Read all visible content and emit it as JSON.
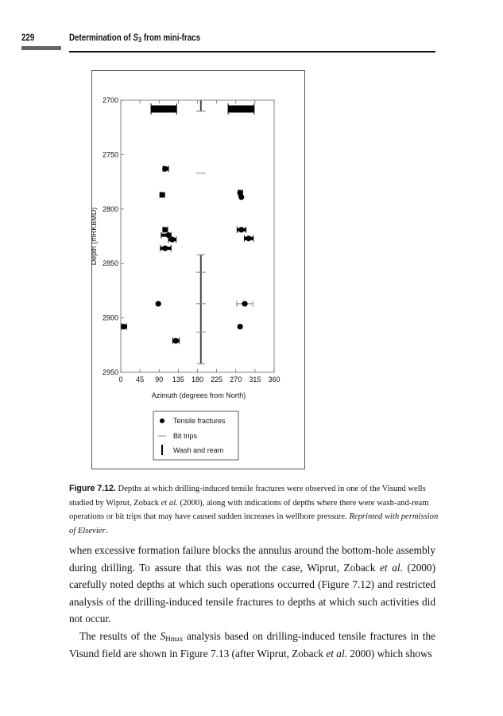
{
  "header": {
    "page_number": "229",
    "running_title_pre": "Determination of ",
    "running_title_var": "S",
    "running_title_sub": "3",
    "running_title_post": " from mini-fracs"
  },
  "chart_data": {
    "type": "scatter",
    "xlabel": "Azimuth (degrees from North)",
    "ylabel": "Depth (mRKBMD)",
    "xlim": [
      0,
      360
    ],
    "ylim": [
      2950,
      2700
    ],
    "y_inverted": true,
    "xticks": [
      0,
      45,
      90,
      135,
      180,
      225,
      270,
      315,
      360
    ],
    "yticks": [
      2700,
      2750,
      2800,
      2850,
      2900,
      2950
    ],
    "legend_position": "below",
    "legend": [
      "Tensile fractures",
      "Bit trips",
      "Wash and ream"
    ],
    "tensile_fractures": [
      {
        "azimuth": 99,
        "depth": 2708,
        "az_min": 71,
        "az_max": 131
      },
      {
        "azimuth": 283,
        "depth": 2708,
        "az_min": 252,
        "az_max": 313
      },
      {
        "azimuth": 104,
        "depth": 2763,
        "az_min": 99,
        "az_max": 112
      },
      {
        "azimuth": 97,
        "depth": 2787,
        "az_min": 92,
        "az_max": 103
      },
      {
        "azimuth": 280,
        "depth": 2785,
        "az_min": 276,
        "az_max": 286
      },
      {
        "azimuth": 283,
        "depth": 2789
      },
      {
        "azimuth": 104,
        "depth": 2819,
        "az_min": 99,
        "az_max": 110
      },
      {
        "azimuth": 112,
        "depth": 2824,
        "az_min": 95,
        "az_max": 118
      },
      {
        "azimuth": 121,
        "depth": 2828,
        "az_min": 112,
        "az_max": 130
      },
      {
        "azimuth": 104,
        "depth": 2836,
        "az_min": 93,
        "az_max": 118
      },
      {
        "azimuth": 283,
        "depth": 2819,
        "az_min": 273,
        "az_max": 294
      },
      {
        "azimuth": 300,
        "depth": 2827,
        "az_min": 290,
        "az_max": 311
      },
      {
        "azimuth": 88,
        "depth": 2887
      },
      {
        "azimuth": 291,
        "depth": 2887,
        "az_min": 272,
        "az_max": 310,
        "faint": true
      },
      {
        "azimuth": 7,
        "depth": 2908,
        "az_min": 2,
        "az_max": 14
      },
      {
        "azimuth": 280,
        "depth": 2908
      },
      {
        "azimuth": 129,
        "depth": 2921,
        "az_min": 122,
        "az_max": 137
      }
    ],
    "bit_trips": [
      {
        "azimuth": 188,
        "depth": 2710
      },
      {
        "azimuth": 188,
        "depth": 2767
      },
      {
        "azimuth": 188,
        "depth": 2858
      },
      {
        "azimuth": 188,
        "depth": 2887
      },
      {
        "azimuth": 188,
        "depth": 2913
      }
    ],
    "wash_and_ream": [
      {
        "azimuth": 188,
        "depth_from": 2700,
        "depth_to": 2710
      },
      {
        "azimuth": 188,
        "depth_from": 2842,
        "depth_to": 2942
      }
    ]
  },
  "caption": {
    "label": "Figure 7.12.",
    "text": " Depths at which drilling-induced tensile fractures were observed in one of the Visund wells studied by Wiprut, Zoback ",
    "etal": "et al.",
    "text2": " (2000), along with indications of depths where there were wash-and-ream operations or bit trips that may have caused sudden increases in wellbore pressure. ",
    "credit": "Reprinted with permission of Elsevier",
    "end": "."
  },
  "body": {
    "p1_a": "when excessive formation failure blocks the annulus around the bottom-hole assembly during drilling. To assure that this was not the case, Wiprut, Zoback ",
    "p1_etal": "et al.",
    "p1_b": " (2000) carefully noted depths at which such operations occurred (Figure 7.12) and restricted analysis of the drilling-induced tensile fractures to depths at which such activities did not occur.",
    "p2_a": "The results of the ",
    "p2_var": "S",
    "p2_sub": "Hmax",
    "p2_b": " analysis based on drilling-induced tensile fractures in the Visund field are shown in Figure 7.13 (after Wiprut, Zoback ",
    "p2_etal": "et al.",
    "p2_c": " 2000) which shows"
  }
}
